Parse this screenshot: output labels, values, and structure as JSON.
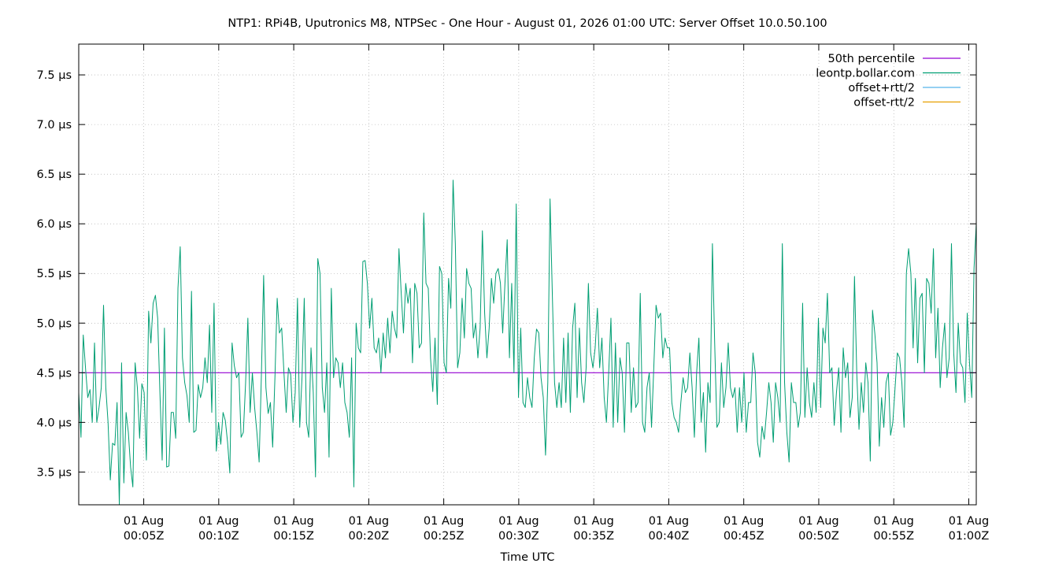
{
  "chart_data": {
    "type": "line",
    "title": "NTP1: RPi4B, Uputronics M8, NTPSec - One Hour - August 01, 2026 01:00 UTC: Server Offset 10.0.50.100",
    "xlabel": "Time UTC",
    "ylabel": "",
    "xlim": [
      "00:00:40",
      "01:00:30"
    ],
    "ylim": [
      3.17,
      7.81
    ],
    "y_unit": "µs",
    "grid": true,
    "legend_position": "top-right",
    "y_ticks": [
      "3.5 µs",
      "4.0 µs",
      "4.5 µs",
      "5.0 µs",
      "5.5 µs",
      "6.0 µs",
      "6.5 µs",
      "7.0 µs",
      "7.5 µs"
    ],
    "x_ticks": [
      {
        "date": "01 Aug",
        "time": "00:05Z"
      },
      {
        "date": "01 Aug",
        "time": "00:10Z"
      },
      {
        "date": "01 Aug",
        "time": "00:15Z"
      },
      {
        "date": "01 Aug",
        "time": "00:20Z"
      },
      {
        "date": "01 Aug",
        "time": "00:25Z"
      },
      {
        "date": "01 Aug",
        "time": "00:30Z"
      },
      {
        "date": "01 Aug",
        "time": "00:35Z"
      },
      {
        "date": "01 Aug",
        "time": "00:40Z"
      },
      {
        "date": "01 Aug",
        "time": "00:45Z"
      },
      {
        "date": "01 Aug",
        "time": "00:50Z"
      },
      {
        "date": "01 Aug",
        "time": "00:55Z"
      },
      {
        "date": "01 Aug",
        "time": "01:00Z"
      }
    ],
    "series": [
      {
        "name": "50th percentile",
        "color": "#9400d3",
        "values": [
          4.5,
          4.5
        ]
      },
      {
        "name": "leontp.bollar.com",
        "color": "#009e73",
        "values": [
          4.3,
          3.85,
          4.88,
          4.55,
          4.25,
          4.33,
          4.0,
          4.8,
          4.0,
          4.15,
          4.35,
          5.18,
          4.35,
          4.0,
          3.42,
          3.79,
          3.77,
          4.2,
          3.17,
          4.6,
          3.39,
          4.1,
          3.9,
          3.55,
          3.35,
          4.6,
          4.35,
          3.84,
          4.39,
          4.3,
          3.62,
          5.12,
          4.8,
          5.2,
          5.28,
          5.05,
          4.3,
          3.62,
          4.95,
          3.55,
          3.56,
          4.1,
          4.1,
          3.84,
          5.35,
          5.77,
          4.65,
          4.4,
          4.27,
          4.0,
          5.32,
          3.9,
          3.92,
          4.38,
          4.25,
          4.35,
          4.65,
          4.4,
          4.98,
          4.1,
          5.2,
          3.71,
          4.0,
          3.78,
          4.1,
          4.02,
          3.8,
          3.49,
          4.8,
          4.57,
          4.45,
          4.5,
          3.85,
          3.9,
          4.4,
          5.05,
          4.1,
          4.5,
          4.15,
          3.9,
          3.6,
          4.48,
          5.48,
          4.35,
          4.09,
          4.2,
          3.75,
          4.45,
          5.25,
          4.9,
          4.95,
          4.5,
          4.1,
          4.55,
          4.48,
          4.0,
          4.3,
          5.25,
          3.95,
          4.45,
          5.25,
          4.0,
          3.85,
          4.75,
          4.3,
          3.45,
          5.65,
          5.5,
          4.35,
          4.1,
          4.6,
          3.65,
          5.35,
          4.45,
          4.65,
          4.6,
          4.35,
          4.6,
          4.2,
          4.1,
          3.85,
          4.65,
          3.35,
          5.0,
          4.75,
          4.7,
          5.62,
          5.63,
          5.4,
          4.95,
          5.25,
          4.75,
          4.7,
          4.85,
          4.5,
          4.9,
          4.65,
          5.05,
          4.7,
          5.12,
          4.95,
          4.85,
          5.75,
          5.3,
          4.9,
          5.4,
          5.2,
          5.35,
          4.6,
          5.4,
          5.3,
          4.75,
          4.8,
          6.11,
          5.4,
          5.35,
          4.65,
          4.31,
          4.85,
          4.18,
          5.57,
          5.5,
          4.6,
          4.5,
          5.45,
          5.15,
          6.44,
          5.8,
          4.55,
          4.7,
          5.25,
          4.85,
          5.55,
          5.4,
          5.35,
          4.85,
          5.0,
          4.65,
          4.95,
          5.93,
          5.1,
          4.65,
          4.95,
          5.45,
          5.2,
          5.5,
          5.55,
          5.4,
          4.9,
          5.4,
          5.84,
          4.65,
          5.4,
          4.5,
          6.2,
          4.25,
          4.95,
          4.2,
          4.15,
          4.45,
          4.25,
          4.15,
          4.65,
          4.94,
          4.9,
          4.45,
          4.25,
          3.67,
          4.4,
          6.25,
          5.3,
          4.4,
          4.15,
          4.4,
          4.15,
          4.85,
          4.2,
          4.9,
          4.1,
          4.95,
          5.2,
          4.25,
          4.95,
          4.4,
          4.2,
          4.55,
          5.4,
          4.7,
          4.55,
          4.75,
          5.15,
          4.55,
          4.85,
          4.25,
          4.0,
          4.5,
          5.05,
          3.95,
          4.8,
          4.0,
          4.65,
          4.5,
          3.9,
          4.8,
          4.8,
          4.1,
          4.55,
          4.15,
          4.2,
          5.3,
          4.0,
          3.9,
          4.35,
          4.5,
          3.95,
          4.55,
          5.18,
          5.05,
          5.1,
          4.65,
          4.85,
          4.75,
          4.75,
          4.2,
          4.05,
          4.0,
          3.9,
          4.2,
          4.45,
          4.3,
          4.35,
          4.7,
          4.35,
          3.85,
          4.5,
          4.85,
          4.0,
          4.3,
          3.7,
          4.4,
          4.2,
          5.8,
          4.8,
          3.95,
          4.0,
          4.6,
          4.15,
          4.35,
          4.8,
          4.35,
          4.25,
          4.35,
          3.9,
          4.35,
          4.0,
          4.5,
          3.9,
          4.2,
          4.2,
          4.7,
          4.5,
          3.8,
          3.65,
          3.96,
          3.83,
          4.1,
          4.4,
          4.2,
          3.8,
          4.4,
          4.25,
          4.0,
          5.8,
          4.4,
          3.9,
          3.6,
          4.4,
          4.2,
          4.2,
          3.95,
          4.1,
          5.2,
          4.05,
          4.55,
          4.2,
          4.05,
          4.4,
          4.1,
          5.05,
          4.15,
          4.95,
          4.8,
          5.3,
          4.5,
          4.55,
          3.97,
          4.3,
          4.55,
          3.9,
          4.75,
          4.45,
          4.6,
          4.05,
          4.25,
          5.47,
          4.5,
          3.93,
          4.4,
          4.1,
          4.6,
          4.4,
          3.61,
          5.13,
          4.9,
          4.6,
          3.76,
          4.25,
          3.95,
          4.4,
          4.5,
          3.87,
          4.0,
          4.35,
          4.7,
          4.65,
          4.4,
          3.95,
          5.5,
          5.75,
          5.5,
          4.75,
          5.45,
          4.6,
          5.25,
          5.3,
          4.5,
          5.45,
          5.4,
          5.1,
          5.75,
          4.65,
          5.15,
          4.35,
          4.75,
          5.0,
          4.45,
          4.65,
          5.8,
          4.7,
          4.3,
          5.0,
          4.6,
          4.55,
          4.2,
          5.1,
          4.6,
          4.25,
          5.55,
          6.0
        ]
      },
      {
        "name": "offset+rtt/2",
        "color": "#56b4e9",
        "values": []
      },
      {
        "name": "offset-rtt/2",
        "color": "#e69f00",
        "values": []
      }
    ]
  }
}
